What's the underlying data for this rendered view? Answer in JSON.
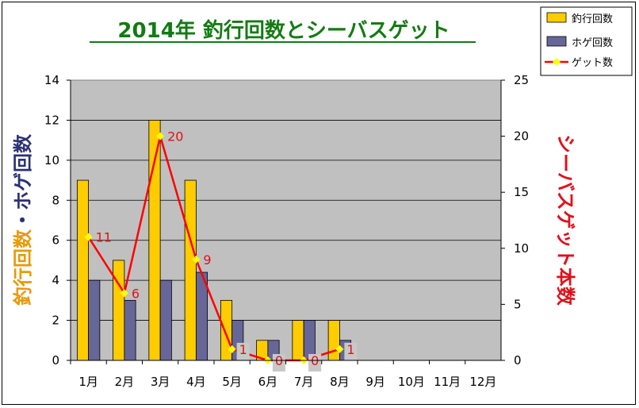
{
  "chart_data": {
    "type": "bar",
    "title": "2014年 釣行回数とシーバスゲット",
    "categories": [
      "1月",
      "2月",
      "3月",
      "4月",
      "5月",
      "6月",
      "7月",
      "8月",
      "9月",
      "10月",
      "11月",
      "12月"
    ],
    "ylabel_left": "釣行回数・ホゲ回数",
    "ylabel_left_parts": [
      "釣行回数",
      "・ホゲ回数"
    ],
    "ylabel_right": "シーバスゲット本数",
    "ylim_left": [
      0,
      14
    ],
    "yticks_left": [
      "0",
      "2",
      "4",
      "6",
      "8",
      "10",
      "12",
      "14"
    ],
    "ylim_right": [
      0,
      25
    ],
    "yticks_right": [
      "0",
      "5",
      "10",
      "15",
      "20",
      "25"
    ],
    "grid": true,
    "legend_position": "top-right",
    "series": [
      {
        "name": "釣行回数",
        "type": "bar",
        "axis": "left",
        "color": "#ffcc00",
        "values": [
          9,
          5,
          12,
          9,
          3,
          1,
          2,
          2,
          null,
          null,
          null,
          null
        ]
      },
      {
        "name": "ホゲ回数",
        "type": "bar",
        "axis": "left",
        "color": "#666699",
        "values": [
          4,
          3,
          4,
          4.4,
          2,
          1,
          2,
          1,
          null,
          null,
          null,
          null
        ]
      },
      {
        "name": "ゲット数",
        "type": "line",
        "axis": "right",
        "color": "#ff0000",
        "marker_color": "#ffff00",
        "values": [
          11,
          6,
          20,
          9,
          1,
          0,
          0,
          1,
          null,
          null,
          null,
          null
        ],
        "data_labels": [
          "11",
          "6",
          "20",
          "9",
          "1",
          "0",
          "0",
          "1"
        ]
      }
    ],
    "colors": {
      "plot_background": "#c0c0c0",
      "title": "#137b13",
      "left_axis_label_a": "#e69a0a",
      "left_axis_label_b": "#2b3172",
      "right_axis_label": "#e0101a"
    }
  }
}
